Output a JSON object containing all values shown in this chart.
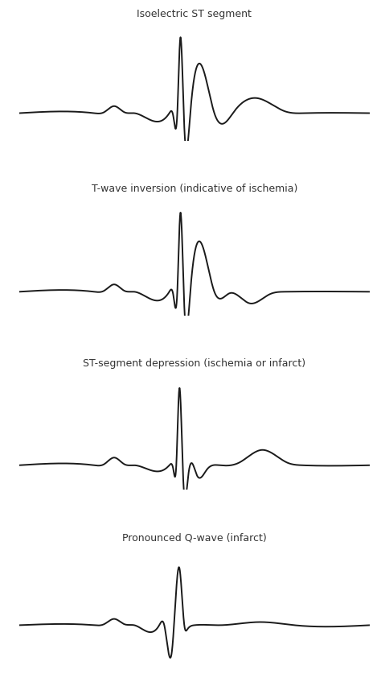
{
  "titles": [
    "Isoelectric ST segment",
    "T-wave inversion (indicative of ischemia)",
    "ST-segment depression (ischemia or infarct)",
    "Pronounced Q-wave (infarct)"
  ],
  "background_color": "#ffffff",
  "line_color": "#1a1a1a",
  "line_width": 1.4,
  "title_fontsize": 9,
  "fig_width": 4.74,
  "fig_height": 8.42,
  "variants": [
    "normal",
    "t_inversion",
    "st_depression",
    "pronounced_q"
  ]
}
